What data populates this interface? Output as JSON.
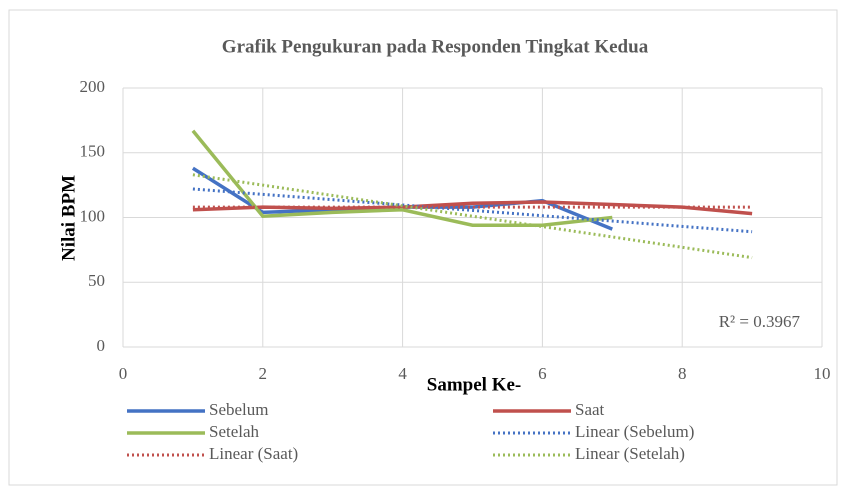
{
  "chart_data": {
    "type": "line",
    "title": "Grafik Pengukuran pada Responden Tingkat Kedua",
    "x_label": "Sampel Ke-",
    "y_label": "Nilai BPM",
    "xlim": [
      0,
      10
    ],
    "xticks": [
      0,
      2,
      4,
      6,
      8,
      10
    ],
    "ylim": [
      0,
      200
    ],
    "yticks": [
      0,
      50,
      100,
      150,
      200
    ],
    "grid": true,
    "annotation": "R² = 0.3967",
    "series": [
      {
        "name": "Sebelum",
        "color": "#4472c4",
        "style": "solid",
        "x": [
          1,
          2,
          3,
          4,
          5,
          6,
          7
        ],
        "values": [
          138,
          104,
          106,
          108,
          108,
          113,
          91
        ]
      },
      {
        "name": "Saat",
        "color": "#c0504d",
        "style": "solid",
        "x": [
          1,
          2,
          3,
          4,
          5,
          6,
          7,
          8,
          9
        ],
        "values": [
          106,
          108,
          107,
          108,
          111,
          112,
          110,
          108,
          103
        ]
      },
      {
        "name": "Setelah",
        "color": "#9bbb59",
        "style": "solid",
        "x": [
          1,
          2,
          3,
          4,
          5,
          6,
          7
        ],
        "values": [
          167,
          101,
          104,
          106,
          94,
          94,
          100
        ]
      },
      {
        "name": "Linear (Sebelum)",
        "color": "#4472c4",
        "style": "dotted",
        "x": [
          1,
          9
        ],
        "values": [
          122,
          89
        ]
      },
      {
        "name": "Linear (Saat)",
        "color": "#c0504d",
        "style": "dotted",
        "x": [
          1,
          9
        ],
        "values": [
          108,
          108
        ]
      },
      {
        "name": "Linear (Setelah)",
        "color": "#9bbb59",
        "style": "dotted",
        "x": [
          1,
          9
        ],
        "values": [
          133,
          69
        ]
      }
    ]
  }
}
